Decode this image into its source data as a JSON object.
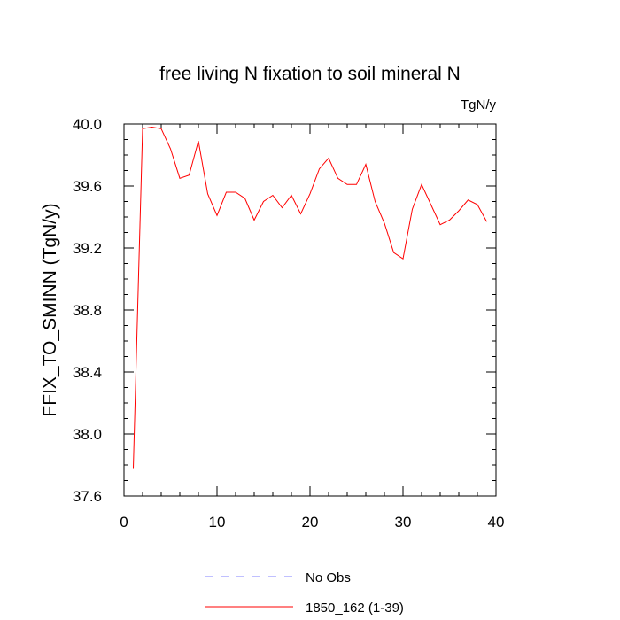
{
  "chart_data": {
    "type": "line",
    "title": "free living N fixation to soil mineral N",
    "units": "TgN/y",
    "ylabel": "FFIX_TO_SMINN  (TgN/y)",
    "xlabel": "",
    "xlim": [
      0,
      40
    ],
    "ylim": [
      37.6,
      40.0
    ],
    "x_ticks": [
      0,
      10,
      20,
      30,
      40
    ],
    "y_ticks": [
      37.6,
      38.0,
      38.4,
      38.8,
      39.2,
      39.6,
      40.0
    ],
    "x_tick_labels": [
      "0",
      "10",
      "20",
      "30",
      "40"
    ],
    "y_tick_labels": [
      "37.6",
      "38.0",
      "38.4",
      "38.8",
      "39.2",
      "39.6",
      "40.0"
    ],
    "grid": false,
    "legend_position": "bottom",
    "series": [
      {
        "name": "No Obs",
        "color": "#8080ff",
        "style": "dashed",
        "x": [],
        "values": []
      },
      {
        "name": "1850_162 (1-39)",
        "color": "#ff0000",
        "style": "solid",
        "x": [
          1,
          2,
          3,
          4,
          5,
          6,
          7,
          8,
          9,
          10,
          11,
          12,
          13,
          14,
          15,
          16,
          17,
          18,
          19,
          20,
          21,
          22,
          23,
          24,
          25,
          26,
          27,
          28,
          29,
          30,
          31,
          32,
          33,
          34,
          35,
          36,
          37,
          38,
          39
        ],
        "values": [
          37.78,
          39.97,
          39.98,
          39.97,
          39.84,
          39.65,
          39.67,
          39.89,
          39.55,
          39.41,
          39.56,
          39.56,
          39.52,
          39.38,
          39.5,
          39.54,
          39.46,
          39.54,
          39.42,
          39.55,
          39.71,
          39.78,
          39.65,
          39.61,
          39.61,
          39.74,
          39.5,
          39.36,
          39.17,
          39.13,
          39.45,
          39.61,
          39.48,
          39.35,
          39.38,
          39.44,
          39.51,
          39.48,
          39.37
        ]
      }
    ]
  }
}
